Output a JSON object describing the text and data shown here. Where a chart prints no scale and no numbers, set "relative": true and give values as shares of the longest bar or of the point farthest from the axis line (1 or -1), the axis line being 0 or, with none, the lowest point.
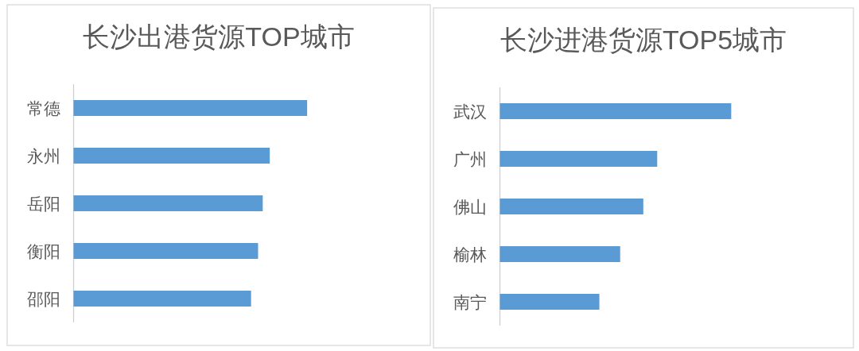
{
  "chart_data": [
    {
      "type": "bar",
      "orientation": "horizontal",
      "relative": true,
      "title": "长沙出港货源TOP城市",
      "categories": [
        "常德",
        "永州",
        "岳阳",
        "衡阳",
        "邵阳"
      ],
      "values": [
        1,
        0.84,
        0.81,
        0.79,
        0.76
      ],
      "color": "#5b9bd5"
    },
    {
      "type": "bar",
      "orientation": "horizontal",
      "relative": true,
      "title": "长沙进港货源TOP5城市",
      "categories": [
        "武汉",
        "广州",
        "佛山",
        "榆林",
        "南宁"
      ],
      "values": [
        1,
        0.68,
        0.62,
        0.52,
        0.43
      ],
      "color": "#5b9bd5"
    }
  ]
}
